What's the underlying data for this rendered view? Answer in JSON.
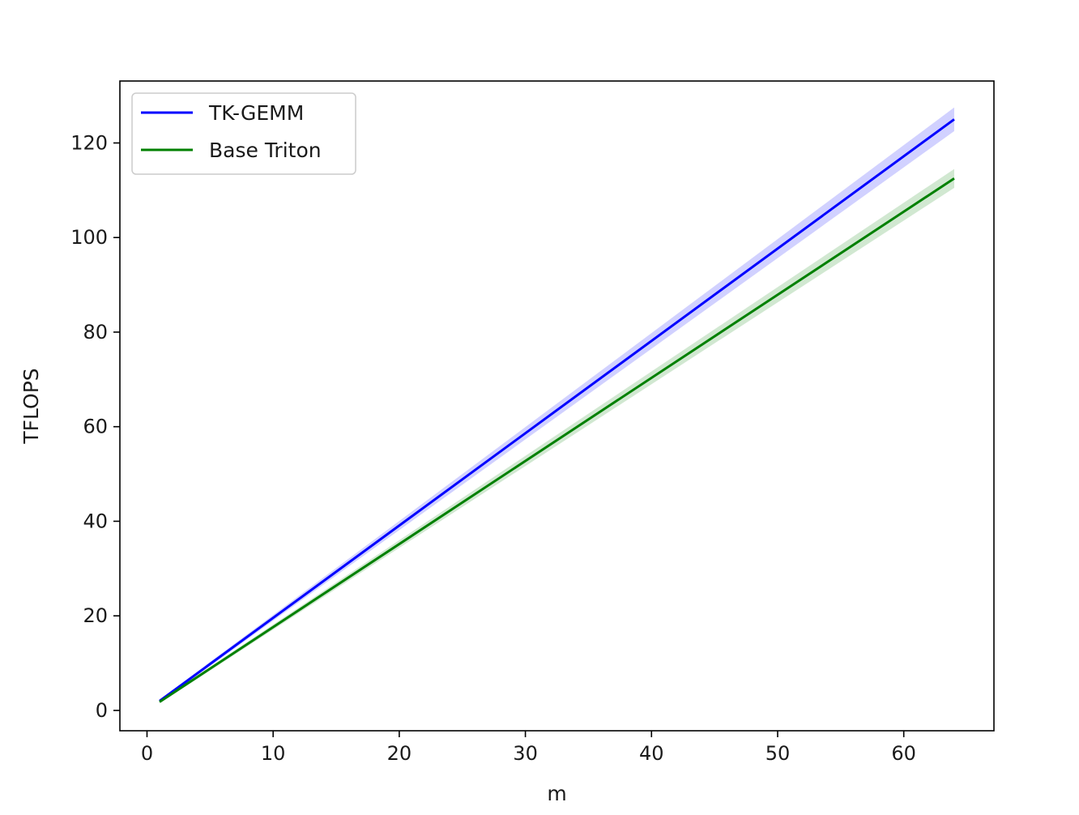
{
  "chart_data": {
    "type": "line",
    "title": "",
    "xlabel": "m",
    "ylabel": "TFLOPS",
    "xlim": [
      -2.15,
      67.15
    ],
    "ylim": [
      -4.3,
      133.1
    ],
    "xticks": [
      0,
      10,
      20,
      30,
      40,
      50,
      60
    ],
    "yticks": [
      0,
      20,
      40,
      60,
      80,
      100,
      120
    ],
    "grid": false,
    "legend_position": "top-left",
    "series": [
      {
        "name": "TK-GEMM",
        "color": "#0000ff",
        "band_color": "#0000ff",
        "x": [
          1,
          64
        ],
        "y": [
          2.0,
          125.0
        ],
        "band_halfwidth": [
          0.3,
          2.5
        ]
      },
      {
        "name": "Base Triton",
        "color": "#008000",
        "band_color": "#008000",
        "x": [
          1,
          64
        ],
        "y": [
          1.8,
          112.5
        ],
        "band_halfwidth": [
          0.3,
          2.0
        ]
      }
    ]
  }
}
